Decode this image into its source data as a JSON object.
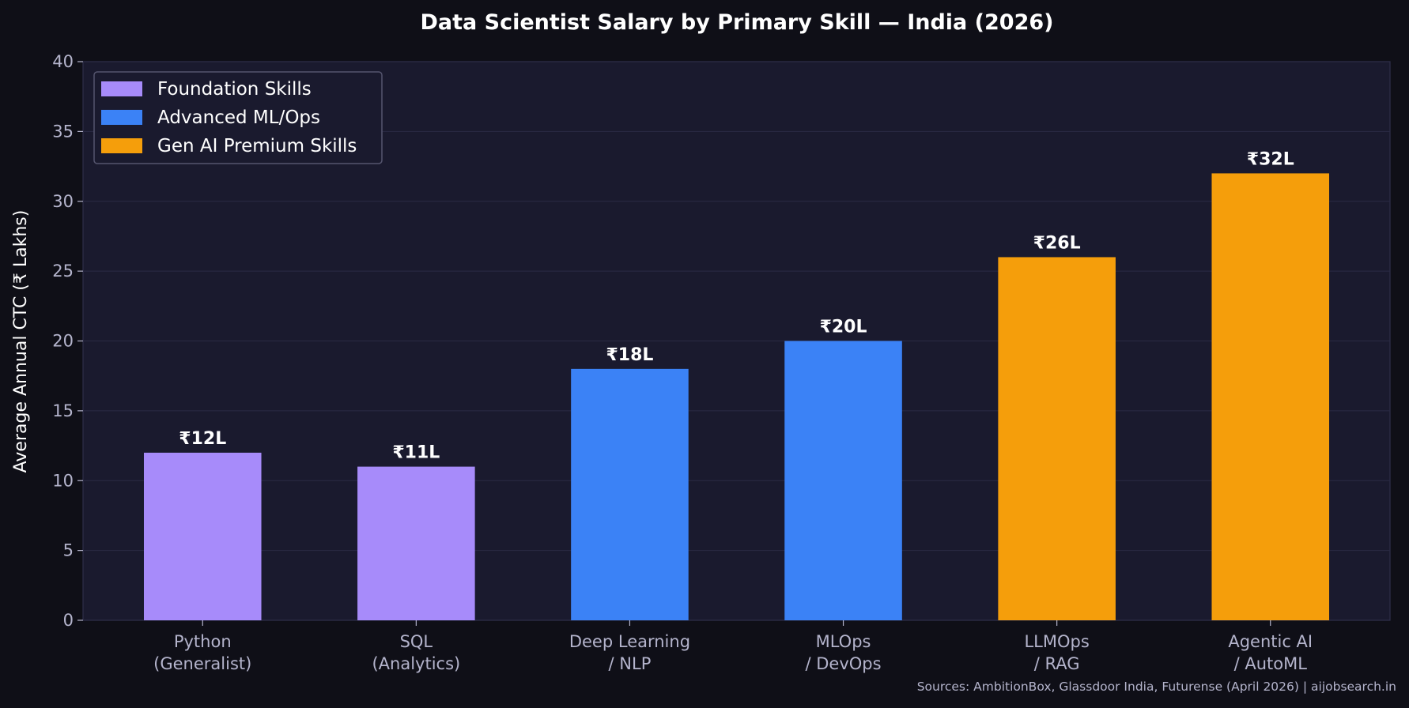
{
  "chart_data": {
    "type": "bar",
    "title": "Data Scientist Salary by Primary Skill — India (2026)",
    "xlabel": "",
    "ylabel": "Average Annual CTC (₹ Lakhs)",
    "ylim": [
      0,
      40
    ],
    "yticks": [
      0,
      5,
      10,
      15,
      20,
      25,
      30,
      35,
      40
    ],
    "grid": "horizontal",
    "legend_placement": "top-left",
    "categories": [
      [
        "Python",
        "(Generalist)"
      ],
      [
        "SQL",
        "(Analytics)"
      ],
      [
        "Deep Learning",
        "/ NLP"
      ],
      [
        "MLOps",
        "/ DevOps"
      ],
      [
        "LLMOps",
        "/ RAG"
      ],
      [
        "Agentic AI",
        "/ AutoML"
      ]
    ],
    "values": [
      12,
      11,
      18,
      20,
      26,
      32
    ],
    "data_labels": [
      "₹12L",
      "₹11L",
      "₹18L",
      "₹20L",
      "₹26L",
      "₹32L"
    ],
    "groups": [
      0,
      0,
      1,
      1,
      2,
      2
    ],
    "legend": [
      {
        "name": "Foundation Skills",
        "color": "#a78bfa"
      },
      {
        "name": "Advanced ML/Ops",
        "color": "#3b82f6"
      },
      {
        "name": "Gen AI Premium Skills",
        "color": "#f59e0b"
      }
    ],
    "source_note": "Sources: AmbitionBox, Glassdoor India, Futurense (April 2026) | aijobsearch.in"
  },
  "colors": {
    "background": "#0f0f17",
    "plot_background": "#1a1a2e",
    "text": "#ffffff",
    "tick_text": "#b4b4cc"
  }
}
